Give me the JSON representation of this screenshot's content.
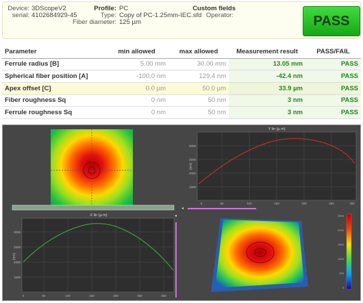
{
  "header": {
    "device_label": "Device:",
    "device_value": "3DScopeV2",
    "serial_label": "serial:",
    "serial_value": "4102684929-45",
    "profile_label": "Profile:",
    "profile_value": "PC",
    "type_label": "Type:",
    "type_value": "Copy of PC-1.25mm-IEC.sfd",
    "fiber_label": "Fiber diameter:",
    "fiber_value": "125 µm",
    "custom_label": "Custom fields",
    "operator_label": "Operator:",
    "result": "PASS",
    "result_color": "#22bb22"
  },
  "table": {
    "headers": [
      "Parameter",
      "min allowed",
      "max allowed",
      "Measurement result",
      "PASS/FAIL"
    ],
    "rows": [
      {
        "name": "Ferrule radius [B]",
        "min": "5.00 mm",
        "max": "30.00 mm",
        "result": "13.05 mm",
        "status": "PASS"
      },
      {
        "name": "Spherical fiber position [A]",
        "min": "-100.0 nm",
        "max": "129.4 nm",
        "result": "-42.4 nm",
        "status": "PASS"
      },
      {
        "name": "Apex offset [C]",
        "min": "0.0 µm",
        "max": "50.0 µm",
        "result": "33.9 µm",
        "status": "PASS"
      },
      {
        "name": "Fiber roughness Sq",
        "min": "0 nm",
        "max": "50 nm",
        "result": "3 nm",
        "status": "PASS"
      },
      {
        "name": "Ferrule roughness Sq",
        "min": "0 nm",
        "max": "50 nm",
        "result": "3 nm",
        "status": "PASS"
      }
    ]
  },
  "plots": {
    "y_profile_title": "Y lin (µ m)",
    "x_profile_title": "X lin (µ m)",
    "y_axis_label": "(nm)",
    "y_ticks": [
      "3000",
      "2500",
      "2000",
      "1500"
    ],
    "x_ticks": [
      "0",
      "50",
      "100",
      "150",
      "200",
      "250",
      "300"
    ],
    "colorbar_ticks": [
      "2500",
      "2000",
      "1500",
      "1000",
      "500",
      "0"
    ],
    "y_profile_color": "#d03030",
    "x_profile_color": "#40b040"
  }
}
